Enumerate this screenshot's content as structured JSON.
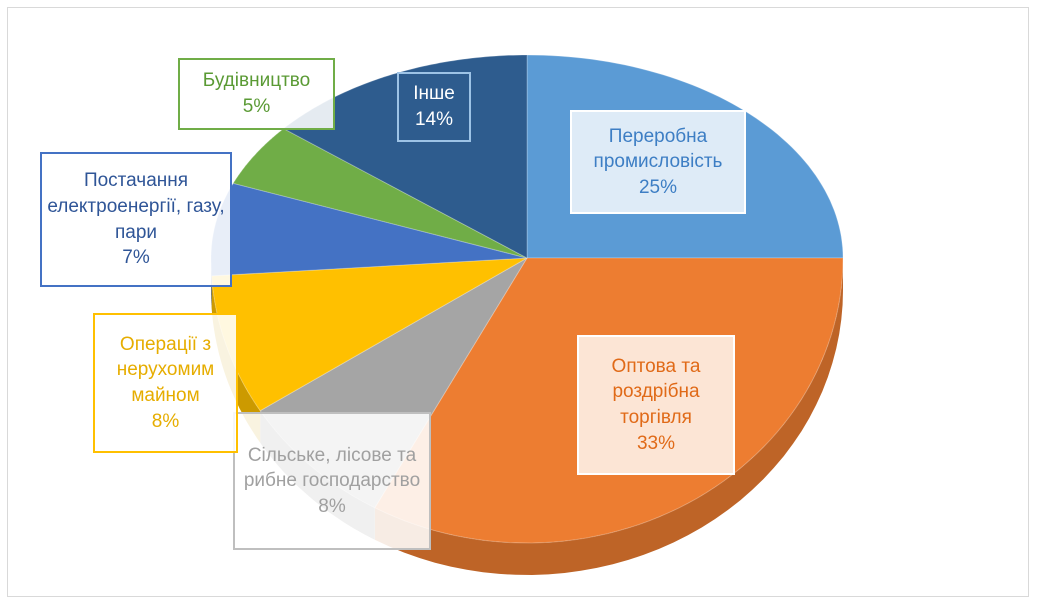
{
  "chart_data": {
    "type": "pie3d",
    "categories": [
      "Переробна промисловість",
      "Оптова та роздрібна торгівля",
      "Сільське, лісове та рибне господарство",
      "Операції з нерухомим майном",
      "Постачання електроенергії, газу, пари",
      "Будівництво",
      "Інше"
    ],
    "values": [
      25,
      33,
      8,
      8,
      7,
      5,
      14
    ],
    "value_labels": [
      "25%",
      "33%",
      "8%",
      "8%",
      "7%",
      "5%",
      "14%"
    ],
    "colors": [
      "#5b9bd5",
      "#ed7d31",
      "#a5a5a5",
      "#ffc000",
      "#4472c4",
      "#70ad47",
      "#2e5c8e"
    ]
  }
}
